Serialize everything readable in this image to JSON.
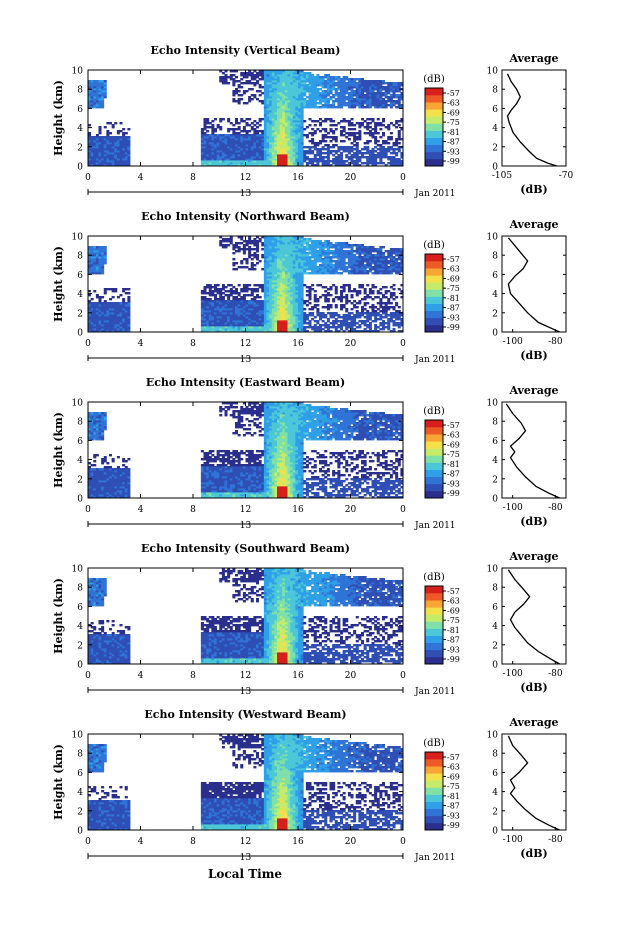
{
  "figure": {
    "common_xlabel": "Local Time",
    "date_label": "Jan 2011",
    "colorbar_unit": "(dB)",
    "colorbar_ticks": [
      "-57",
      "-63",
      "-69",
      "-75",
      "-81",
      "-87",
      "-93",
      "-99"
    ],
    "colormap": [
      "#2a2e8c",
      "#2f4fb5",
      "#2f74d6",
      "#2fa0e8",
      "#4cc7d8",
      "#7fe0a8",
      "#c4ec6a",
      "#f4e04a",
      "#f7a534",
      "#ee5a26",
      "#d71f1c"
    ]
  },
  "chart_data": [
    {
      "type": "heatmap",
      "title": "Echo Intensity (Vertical Beam)",
      "ylabel": "Height (km)",
      "xlabel": "Local Time",
      "x_ticks": [
        "0",
        "4",
        "8",
        "12",
        "16",
        "20",
        "0"
      ],
      "x_date_tick": "13",
      "xlim": [
        0,
        24
      ],
      "y_ticks": [
        "0",
        "2",
        "4",
        "6",
        "8",
        "10"
      ],
      "ylim": [
        0,
        10
      ],
      "colorbar": {
        "unit": "(dB)",
        "range": [
          -99,
          -57
        ]
      },
      "profile": {
        "title": "Average",
        "xlabel": "(dB)",
        "x_ticks": [
          "-105",
          "-70"
        ],
        "xlim": [
          -105,
          -70
        ],
        "y_ticks": [
          "0",
          "2",
          "4",
          "6",
          "8",
          "10"
        ],
        "points": [
          [
            -75,
            0
          ],
          [
            -80,
            0.3
          ],
          [
            -86,
            0.8
          ],
          [
            -90,
            1.5
          ],
          [
            -95,
            2.5
          ],
          [
            -99,
            3.5
          ],
          [
            -101,
            4.5
          ],
          [
            -102,
            5.2
          ],
          [
            -100,
            5.8
          ],
          [
            -97,
            6.5
          ],
          [
            -95,
            7.2
          ],
          [
            -97,
            8.0
          ],
          [
            -100,
            8.8
          ],
          [
            -102,
            9.6
          ]
        ]
      }
    },
    {
      "type": "heatmap",
      "title": "Echo Intensity (Northward Beam)",
      "ylabel": "Height (km)",
      "xlabel": "Local Time",
      "x_ticks": [
        "0",
        "4",
        "8",
        "12",
        "16",
        "20",
        "0"
      ],
      "x_date_tick": "13",
      "xlim": [
        0,
        24
      ],
      "y_ticks": [
        "0",
        "2",
        "4",
        "6",
        "8",
        "10"
      ],
      "ylim": [
        0,
        10
      ],
      "colorbar": {
        "unit": "(dB)",
        "range": [
          -99,
          -57
        ]
      },
      "profile": {
        "title": "Average",
        "xlabel": "(dB)",
        "x_ticks": [
          "-100",
          "-80"
        ],
        "xlim": [
          -105,
          -75
        ],
        "y_ticks": [
          "0",
          "2",
          "4",
          "6",
          "8",
          "10"
        ],
        "points": [
          [
            -78,
            0
          ],
          [
            -82,
            0.4
          ],
          [
            -88,
            1.0
          ],
          [
            -93,
            2.0
          ],
          [
            -97,
            3.0
          ],
          [
            -101,
            4.0
          ],
          [
            -102,
            5.0
          ],
          [
            -99,
            5.8
          ],
          [
            -95,
            6.6
          ],
          [
            -93,
            7.4
          ],
          [
            -96,
            8.2
          ],
          [
            -99,
            9.0
          ],
          [
            -102,
            9.8
          ]
        ]
      }
    },
    {
      "type": "heatmap",
      "title": "Echo Intensity (Eastward Beam)",
      "ylabel": "Height (km)",
      "xlabel": "Local Time",
      "x_ticks": [
        "0",
        "4",
        "8",
        "12",
        "16",
        "20",
        "0"
      ],
      "x_date_tick": "13",
      "xlim": [
        0,
        24
      ],
      "y_ticks": [
        "0",
        "2",
        "4",
        "6",
        "8",
        "10"
      ],
      "ylim": [
        0,
        10
      ],
      "colorbar": {
        "unit": "(dB)",
        "range": [
          -99,
          -57
        ]
      },
      "profile": {
        "title": "Average",
        "xlabel": "(dB)",
        "x_ticks": [
          "-100",
          "-80"
        ],
        "xlim": [
          -105,
          -75
        ],
        "y_ticks": [
          "0",
          "2",
          "4",
          "6",
          "8",
          "10"
        ],
        "points": [
          [
            -78,
            0
          ],
          [
            -83,
            0.5
          ],
          [
            -89,
            1.2
          ],
          [
            -94,
            2.2
          ],
          [
            -98,
            3.2
          ],
          [
            -101,
            4.2
          ],
          [
            -99,
            4.8
          ],
          [
            -101,
            5.4
          ],
          [
            -97,
            6.2
          ],
          [
            -94,
            7.0
          ],
          [
            -96,
            7.8
          ],
          [
            -100,
            8.8
          ],
          [
            -103,
            9.8
          ]
        ]
      }
    },
    {
      "type": "heatmap",
      "title": "Echo Intensity (Southward Beam)",
      "ylabel": "Height (km)",
      "xlabel": "Local Time",
      "x_ticks": [
        "0",
        "4",
        "8",
        "12",
        "16",
        "20",
        "0"
      ],
      "x_date_tick": "13",
      "xlim": [
        0,
        24
      ],
      "y_ticks": [
        "0",
        "2",
        "4",
        "6",
        "8",
        "10"
      ],
      "ylim": [
        0,
        10
      ],
      "colorbar": {
        "unit": "(dB)",
        "range": [
          -99,
          -57
        ]
      },
      "profile": {
        "title": "Average",
        "xlabel": "(dB)",
        "x_ticks": [
          "-100",
          "-80"
        ],
        "xlim": [
          -105,
          -75
        ],
        "y_ticks": [
          "0",
          "2",
          "4",
          "6",
          "8",
          "10"
        ],
        "points": [
          [
            -78,
            0
          ],
          [
            -82,
            0.5
          ],
          [
            -88,
            1.3
          ],
          [
            -93,
            2.2
          ],
          [
            -96,
            3.0
          ],
          [
            -99,
            3.8
          ],
          [
            -101,
            4.6
          ],
          [
            -99,
            5.4
          ],
          [
            -95,
            6.2
          ],
          [
            -92,
            7.0
          ],
          [
            -95,
            7.8
          ],
          [
            -99,
            8.8
          ],
          [
            -102,
            9.8
          ]
        ]
      }
    },
    {
      "type": "heatmap",
      "title": "Echo Intensity (Westward Beam)",
      "ylabel": "Height (km)",
      "xlabel": "Local Time",
      "x_ticks": [
        "0",
        "4",
        "8",
        "12",
        "16",
        "20",
        "0"
      ],
      "x_date_tick": "13",
      "xlim": [
        0,
        24
      ],
      "y_ticks": [
        "0",
        "2",
        "4",
        "6",
        "8",
        "10"
      ],
      "ylim": [
        0,
        10
      ],
      "colorbar": {
        "unit": "(dB)",
        "range": [
          -99,
          -57
        ]
      },
      "profile": {
        "title": "Average",
        "xlabel": "(dB)",
        "x_ticks": [
          "-100",
          "-80"
        ],
        "xlim": [
          -105,
          -75
        ],
        "y_ticks": [
          "0",
          "2",
          "4",
          "6",
          "8",
          "10"
        ],
        "points": [
          [
            -78,
            0
          ],
          [
            -83,
            0.5
          ],
          [
            -89,
            1.2
          ],
          [
            -94,
            2.1
          ],
          [
            -98,
            3.0
          ],
          [
            -101,
            3.8
          ],
          [
            -99,
            4.4
          ],
          [
            -101,
            5.2
          ],
          [
            -97,
            6.0
          ],
          [
            -93,
            7.0
          ],
          [
            -96,
            7.8
          ],
          [
            -100,
            8.8
          ],
          [
            -102,
            9.8
          ]
        ]
      }
    }
  ]
}
